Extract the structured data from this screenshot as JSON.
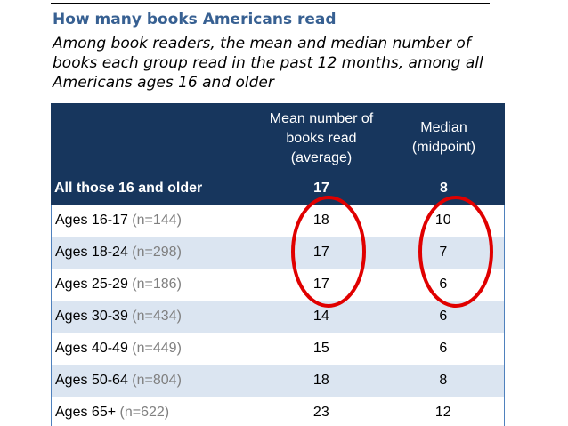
{
  "title": "How many books Americans read",
  "subtitle": "Among book readers, the mean and median number of books each group read in the past 12 months, among all Americans ages 16 and older",
  "table": {
    "headers": {
      "group": "",
      "mean": "Mean number of\nbooks read\n(average)",
      "median": "Median\n(midpoint)"
    },
    "summary_row": {
      "label": "All those 16 and older",
      "mean": "17",
      "median": "8"
    },
    "rows": [
      {
        "label": "Ages 16-17",
        "n": "(n=144)",
        "mean": "18",
        "median": "10"
      },
      {
        "label": "Ages 18-24",
        "n": "(n=298)",
        "mean": "17",
        "median": "7"
      },
      {
        "label": "Ages 25-29",
        "n": "(n=186)",
        "mean": "17",
        "median": "6"
      },
      {
        "label": "Ages 30-39",
        "n": "(n=434)",
        "mean": "14",
        "median": "6"
      },
      {
        "label": "Ages 40-49",
        "n": "(n=449)",
        "mean": "15",
        "median": "6"
      },
      {
        "label": "Ages 50-64",
        "n": "(n=804)",
        "mean": "18",
        "median": "8"
      },
      {
        "label": "Ages 65+",
        "n": "(n=622)",
        "mean": "23",
        "median": "12"
      }
    ]
  },
  "colors": {
    "title": "#376092",
    "header_bg": "#17365d",
    "shade_row": "#dbe5f1",
    "n_text": "#7f7f7f",
    "highlight_oval": "#e00000"
  }
}
